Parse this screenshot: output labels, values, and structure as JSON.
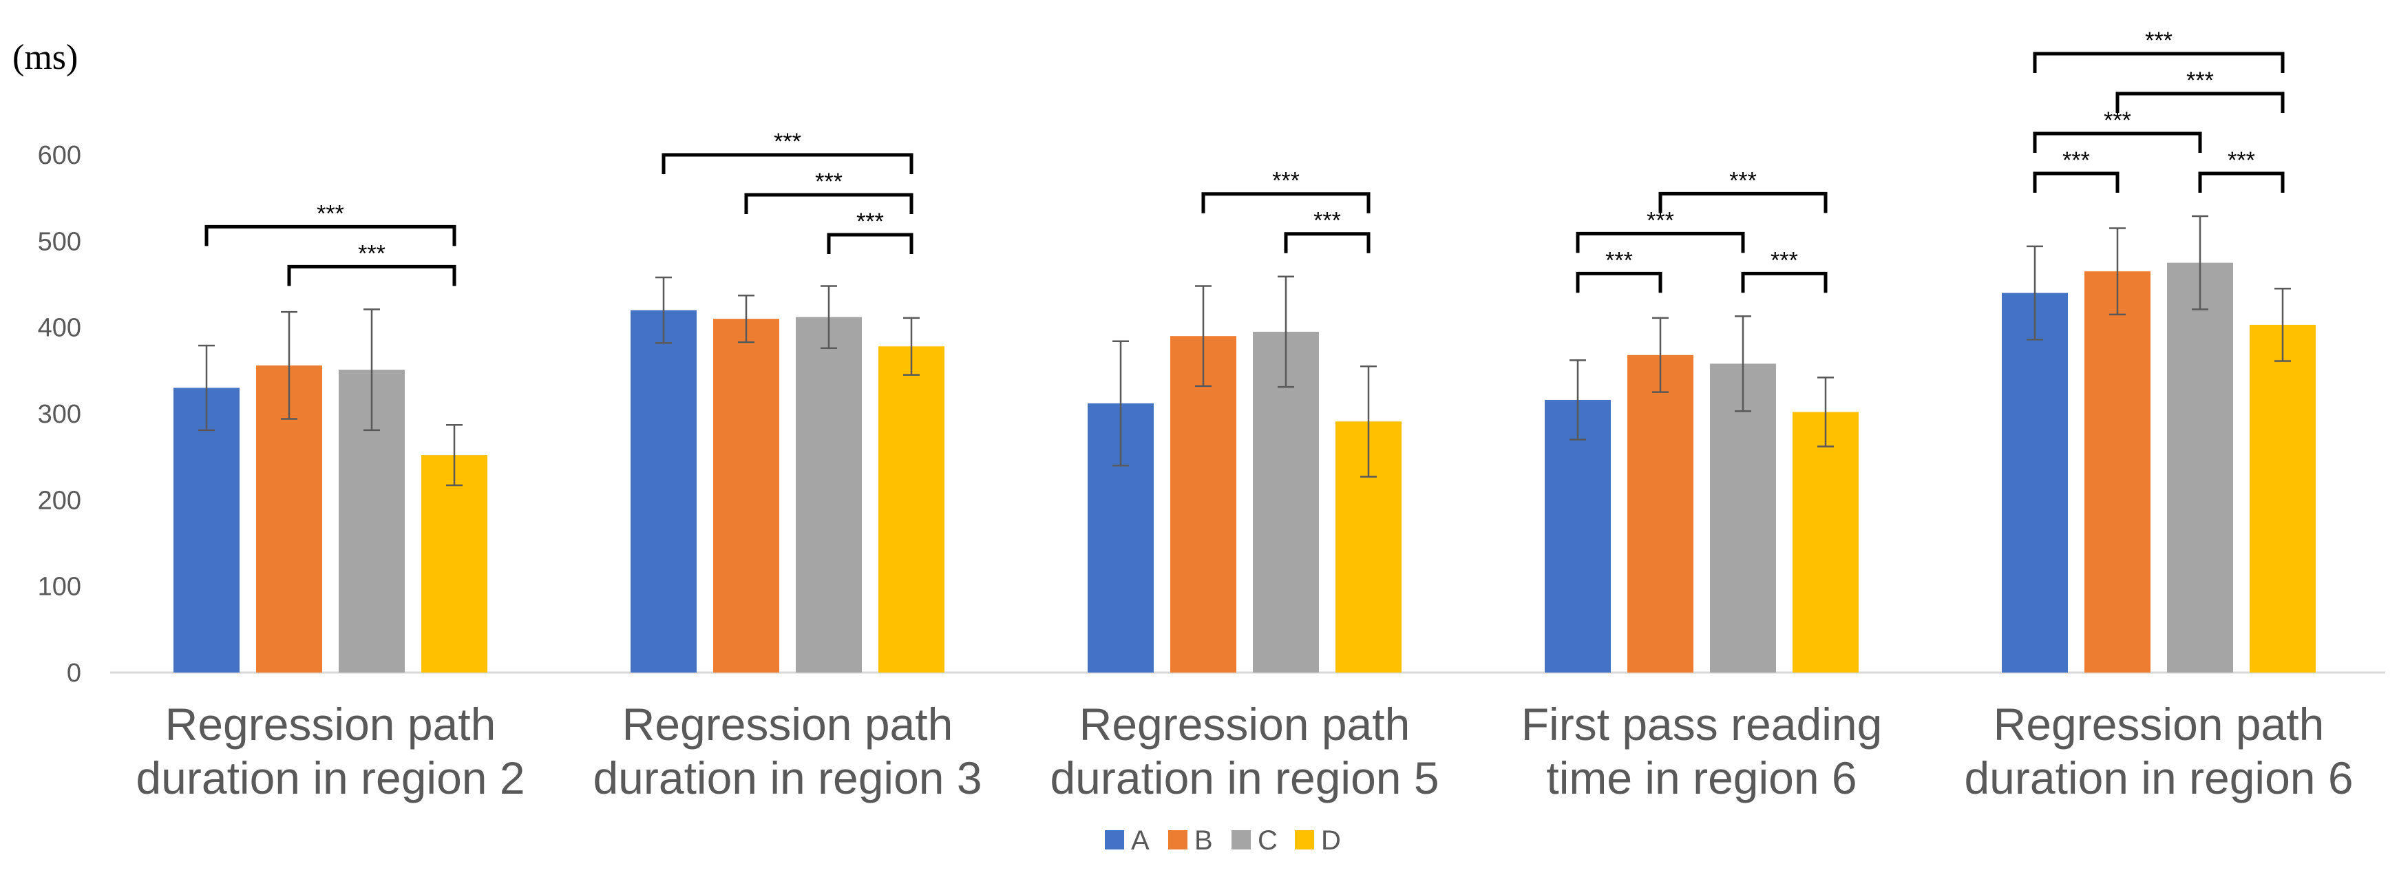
{
  "chart_data": {
    "type": "bar",
    "unit_label": "(ms)",
    "ylim": [
      0,
      600
    ],
    "yticks": [
      0,
      100,
      200,
      300,
      400,
      500,
      600
    ],
    "grid": false,
    "legend_position": "bottom-center",
    "categories": [
      [
        "Regression path",
        "duration in region 2"
      ],
      [
        "Regression path",
        "duration in region 3"
      ],
      [
        "Regression path",
        "duration in region 5"
      ],
      [
        "First pass reading",
        "time in region 6"
      ],
      [
        "Regression path",
        "duration in region 6"
      ]
    ],
    "series": [
      {
        "name": "A",
        "color": "#4472C4",
        "values": [
          330,
          420,
          312,
          316,
          440
        ],
        "errors": [
          49,
          38,
          72,
          46,
          54
        ]
      },
      {
        "name": "B",
        "color": "#ED7D31",
        "values": [
          356,
          410,
          390,
          368,
          465
        ],
        "errors": [
          62,
          27,
          58,
          43,
          50
        ]
      },
      {
        "name": "C",
        "color": "#A5A5A5",
        "values": [
          351,
          412,
          395,
          358,
          475
        ],
        "errors": [
          70,
          36,
          64,
          55,
          54
        ]
      },
      {
        "name": "D",
        "color": "#FFC000",
        "values": [
          252,
          378,
          291,
          302,
          403
        ],
        "errors": [
          35,
          33,
          64,
          40,
          42
        ]
      }
    ],
    "significance": [
      {
        "category": 0,
        "from": 0,
        "to": 3,
        "label": "***"
      },
      {
        "category": 0,
        "from": 1,
        "to": 3,
        "label": "***"
      },
      {
        "category": 1,
        "from": 0,
        "to": 3,
        "label": "***"
      },
      {
        "category": 1,
        "from": 1,
        "to": 3,
        "label": "***"
      },
      {
        "category": 1,
        "from": 2,
        "to": 3,
        "label": "***"
      },
      {
        "category": 2,
        "from": 1,
        "to": 3,
        "label": "***"
      },
      {
        "category": 2,
        "from": 2,
        "to": 3,
        "label": "***"
      },
      {
        "category": 3,
        "from": 0,
        "to": 1,
        "label": "***"
      },
      {
        "category": 3,
        "from": 0,
        "to": 2,
        "label": "***"
      },
      {
        "category": 3,
        "from": 1,
        "to": 3,
        "label": "***"
      },
      {
        "category": 3,
        "from": 2,
        "to": 3,
        "label": "***"
      },
      {
        "category": 4,
        "from": 0,
        "to": 1,
        "label": "***"
      },
      {
        "category": 4,
        "from": 0,
        "to": 2,
        "label": "***"
      },
      {
        "category": 4,
        "from": 2,
        "to": 3,
        "label": "***"
      },
      {
        "category": 4,
        "from": 1,
        "to": 3,
        "label": "***"
      },
      {
        "category": 4,
        "from": 0,
        "to": 3,
        "label": "***"
      }
    ]
  }
}
